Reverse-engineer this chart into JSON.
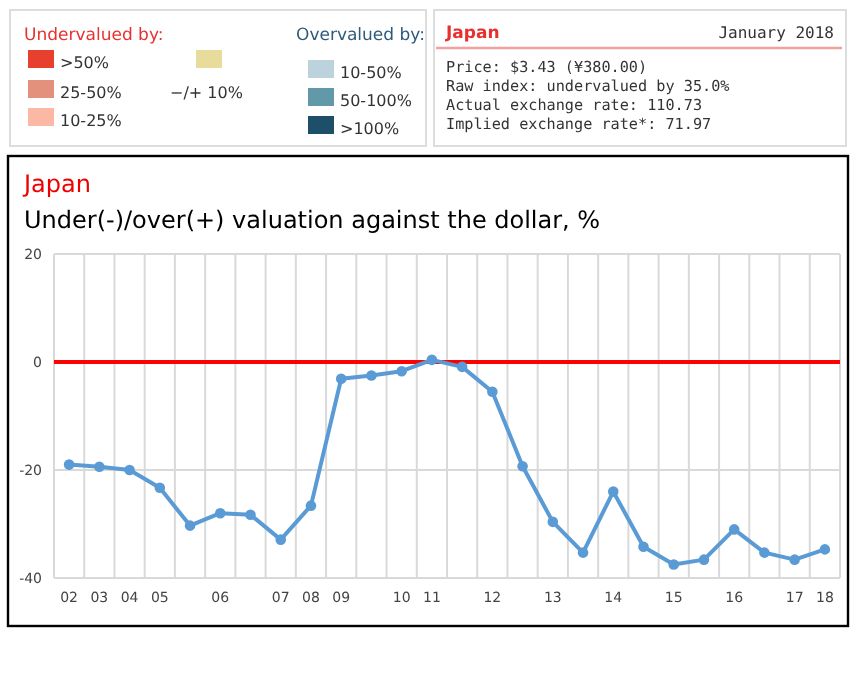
{
  "chart_data": [
    {
      "type": "other",
      "annotations": [
        "Undervalued by:",
        "Overvalued by:"
      ],
      "categories": [
        ">50%",
        "25-50%",
        "10-25%",
        "−/+ 10%",
        "10-50%",
        "50-100%",
        ">100%"
      ],
      "colors": [
        "#e8402e",
        "#e3907c",
        "#fbb8a4",
        "#e8dc9c",
        "#bcd2dc",
        "#6299a8",
        "#1d5068"
      ]
    },
    {
      "type": "other",
      "title": "Japan",
      "subtitle": "January 2018",
      "annotations": [
        "Price: $3.43 (¥380.00)",
        "Raw index: undervalued by 35.0%",
        "Actual exchange rate: 110.73",
        "Implied exchange rate*: 71.97"
      ]
    },
    {
      "type": "line",
      "title": "Japan",
      "subtitle": "Under(-)/over(+) valuation against the dollar, %",
      "categories": [
        "02",
        "03",
        "04",
        "05",
        null,
        "06",
        null,
        "07",
        "08",
        "09",
        null,
        "10",
        "11",
        null,
        "12",
        null,
        "13",
        null,
        "14",
        null,
        "15",
        null,
        "16",
        null,
        "17",
        "18"
      ],
      "series": [
        {
          "color": "#5b9bd5",
          "values": [
            -19.0,
            -19.4,
            -20.0,
            -23.3,
            -30.3,
            -28.0,
            -28.3,
            -32.9,
            -26.6,
            -3.1,
            -2.5,
            -1.7,
            0.4,
            -0.9,
            -5.5,
            -19.3,
            -29.6,
            -35.3,
            -24.0,
            -34.2,
            -37.5,
            -36.6,
            -31.0,
            -35.3,
            -36.6,
            -34.7
          ]
        }
      ],
      "ylim": [
        -40,
        20
      ],
      "yticks": [
        -40,
        -20,
        0,
        20
      ],
      "grid": true,
      "marker": "circle",
      "line_style": "solid",
      "ref_lines": [
        {
          "axis": "y",
          "value": 0,
          "color": "#ff0000"
        }
      ]
    }
  ]
}
